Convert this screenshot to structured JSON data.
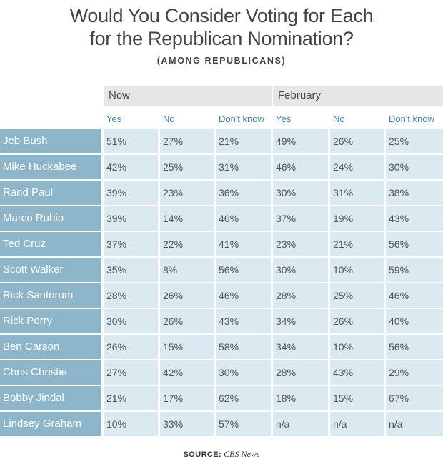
{
  "title_line1": "Would You Consider Voting for Each",
  "title_line2": "for the Republican Nomination?",
  "subtitle": "(AMONG REPUBLICANS)",
  "source_label": "SOURCE:",
  "source_name": "CBS News",
  "colors": {
    "name_bg": "#8eb6ca",
    "cell_bg": "#dbe9f0",
    "header_bg": "#e6e6e6",
    "column_label": "#3f7fb5"
  },
  "chart_data": {
    "type": "table",
    "title": "Would You Consider Voting for Each for the Republican Nomination?",
    "subtitle": "(AMONG REPUBLICANS)",
    "groups": [
      "Now",
      "February"
    ],
    "columns": [
      "Yes",
      "No",
      "Don't know",
      "Yes",
      "No",
      "Don't know"
    ],
    "rows": [
      {
        "name": "Jeb Bush",
        "values": [
          "51%",
          "27%",
          "21%",
          "49%",
          "26%",
          "25%"
        ]
      },
      {
        "name": "Mike Huckabee",
        "values": [
          "42%",
          "25%",
          "31%",
          "46%",
          "24%",
          "30%"
        ]
      },
      {
        "name": "Rand Paul",
        "values": [
          "39%",
          "23%",
          "36%",
          "30%",
          "31%",
          "38%"
        ]
      },
      {
        "name": "Marco Rubio",
        "values": [
          "39%",
          "14%",
          "46%",
          "37%",
          "19%",
          "43%"
        ]
      },
      {
        "name": "Ted Cruz",
        "values": [
          "37%",
          "22%",
          "41%",
          "23%",
          "21%",
          "56%"
        ]
      },
      {
        "name": "Scott Walker",
        "values": [
          "35%",
          "8%",
          "56%",
          "30%",
          "10%",
          "59%"
        ]
      },
      {
        "name": "Rick Santorum",
        "values": [
          "28%",
          "26%",
          "46%",
          "28%",
          "25%",
          "46%"
        ]
      },
      {
        "name": "Rick Perry",
        "values": [
          "30%",
          "26%",
          "43%",
          "34%",
          "26%",
          "40%"
        ]
      },
      {
        "name": "Ben Carson",
        "values": [
          "26%",
          "15%",
          "58%",
          "34%",
          "10%",
          "56%"
        ]
      },
      {
        "name": "Chris Christie",
        "values": [
          "27%",
          "42%",
          "30%",
          "28%",
          "43%",
          "29%"
        ]
      },
      {
        "name": "Bobby Jindal",
        "values": [
          "21%",
          "17%",
          "62%",
          "18%",
          "15%",
          "67%"
        ]
      },
      {
        "name": "Lindsey Graham",
        "values": [
          "10%",
          "33%",
          "57%",
          "n/a",
          "n/a",
          "n/a"
        ]
      }
    ]
  }
}
